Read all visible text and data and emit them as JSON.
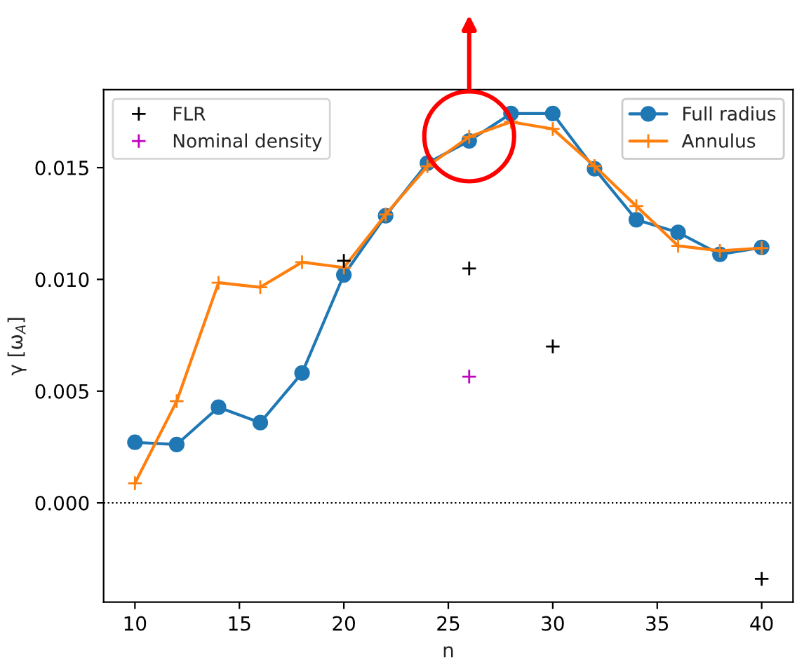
{
  "chart_data": {
    "type": "line",
    "xlabel": "n",
    "ylabel": "γ [ω$_{A}$]",
    "xlim": [
      8.5,
      41.5
    ],
    "ylim": [
      -0.00444,
      0.01849
    ],
    "xticks": [
      10,
      15,
      20,
      25,
      30,
      35,
      40
    ],
    "yticks": [
      {
        "value": 0,
        "label": "0.000"
      },
      {
        "value": 0.005,
        "label": "0.005"
      },
      {
        "value": 0.01,
        "label": "0.010"
      },
      {
        "value": 0.015,
        "label": "0.015"
      }
    ],
    "x": [
      10,
      12,
      14,
      16,
      18,
      20,
      22,
      24,
      26,
      28,
      30,
      32,
      34,
      36,
      38,
      40
    ],
    "series": [
      {
        "name": "FLR",
        "type": "scatter",
        "marker": "cross",
        "color": "#000000",
        "x": [
          20,
          26,
          30,
          40
        ],
        "values": [
          0.01083,
          0.01049,
          0.007,
          -0.0034
        ]
      },
      {
        "name": "Nominal density",
        "type": "scatter",
        "marker": "cross",
        "color": "#bf00bf",
        "x": [
          26
        ],
        "values": [
          0.00565
        ]
      },
      {
        "name": "Full radius",
        "marker": "circle",
        "color": "#1f77b4",
        "values": [
          0.00271,
          0.00261,
          0.00428,
          0.00359,
          0.00581,
          0.0102,
          0.01285,
          0.0152,
          0.0162,
          0.01742,
          0.01742,
          0.01495,
          0.01267,
          0.0121,
          0.01112,
          0.01143
        ]
      },
      {
        "name": "Annulus",
        "marker": "cross",
        "color": "#ff7f0e",
        "values": [
          0.00088,
          0.00455,
          0.00985,
          0.00965,
          0.01077,
          0.01053,
          0.0129,
          0.01506,
          0.01638,
          0.01705,
          0.01673,
          0.01507,
          0.01328,
          0.0115,
          0.01128,
          0.0114
        ]
      }
    ],
    "ref_lines": [
      {
        "axis": "y",
        "value": 0,
        "color": "#000000",
        "line_style": "dotted"
      }
    ],
    "legend": [
      "top left",
      "top right"
    ],
    "grid": false
  }
}
